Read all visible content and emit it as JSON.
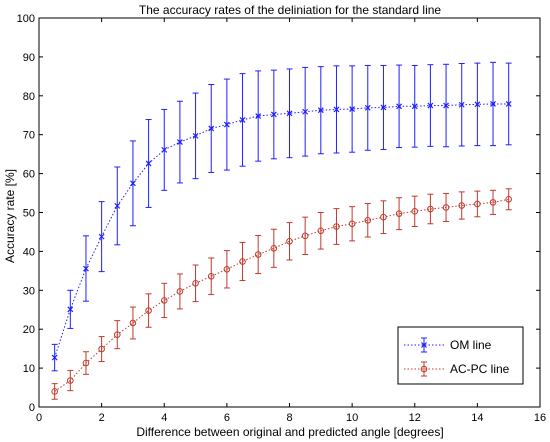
{
  "chart_data": {
    "type": "line",
    "title": "The accuracy rates of the deliniation for the standard line",
    "xlabel": "Difference between original and predicted angle [degrees]",
    "ylabel": "Accuracy rate [%]",
    "xlim": [
      0,
      16
    ],
    "ylim": [
      0,
      100
    ],
    "xticks": [
      0,
      2,
      4,
      6,
      8,
      10,
      12,
      14,
      16
    ],
    "yticks": [
      0,
      10,
      20,
      30,
      40,
      50,
      60,
      70,
      80,
      90,
      100
    ],
    "grid": false,
    "legend_position": "bottom-right",
    "x": [
      0.5,
      1.0,
      1.5,
      2.0,
      2.5,
      3.0,
      3.5,
      4.0,
      4.5,
      5.0,
      5.5,
      6.0,
      6.5,
      7.0,
      7.5,
      8.0,
      8.5,
      9.0,
      9.5,
      10.0,
      10.5,
      11.0,
      11.5,
      12.0,
      12.5,
      13.0,
      13.5,
      14.0,
      14.5,
      15.0
    ],
    "series": [
      {
        "name": "OM line",
        "color": "#1f1fff",
        "marker": "x",
        "values": [
          12.7,
          25.1,
          35.6,
          43.8,
          51.7,
          57.5,
          62.6,
          66.1,
          68.1,
          69.7,
          71.6,
          72.6,
          73.8,
          74.8,
          75.2,
          75.5,
          75.9,
          76.3,
          76.5,
          76.6,
          76.9,
          77.0,
          77.3,
          77.3,
          77.5,
          77.5,
          77.7,
          77.8,
          77.9,
          77.9
        ],
        "errors": [
          3.4,
          4.9,
          8.4,
          9.0,
          10.0,
          10.9,
          11.3,
          10.4,
          10.5,
          11.0,
          11.3,
          11.7,
          11.9,
          11.6,
          11.4,
          11.4,
          11.4,
          11.2,
          11.2,
          11.1,
          10.9,
          10.8,
          10.6,
          10.5,
          10.5,
          10.6,
          10.6,
          10.6,
          10.7,
          10.5
        ]
      },
      {
        "name": "AC-PC line",
        "color": "#c0392b",
        "marker": "o",
        "values": [
          4.0,
          6.8,
          11.3,
          14.9,
          18.6,
          21.6,
          24.8,
          27.4,
          29.7,
          31.8,
          33.6,
          35.4,
          37.4,
          39.2,
          40.8,
          42.6,
          44.0,
          45.3,
          46.4,
          47.1,
          48.0,
          48.8,
          49.7,
          50.3,
          50.9,
          51.3,
          51.8,
          52.2,
          52.6,
          53.4
        ]
      }
    ],
    "ac_pc_errors": [
      2.0,
      2.6,
      2.9,
      3.2,
      3.6,
      4.1,
      4.3,
      4.4,
      4.5,
      4.7,
      4.7,
      4.8,
      4.9,
      4.9,
      4.9,
      4.8,
      4.8,
      4.7,
      4.6,
      4.4,
      4.3,
      4.2,
      4.1,
      3.9,
      3.8,
      3.6,
      3.5,
      3.3,
      3.1,
      2.7
    ]
  }
}
